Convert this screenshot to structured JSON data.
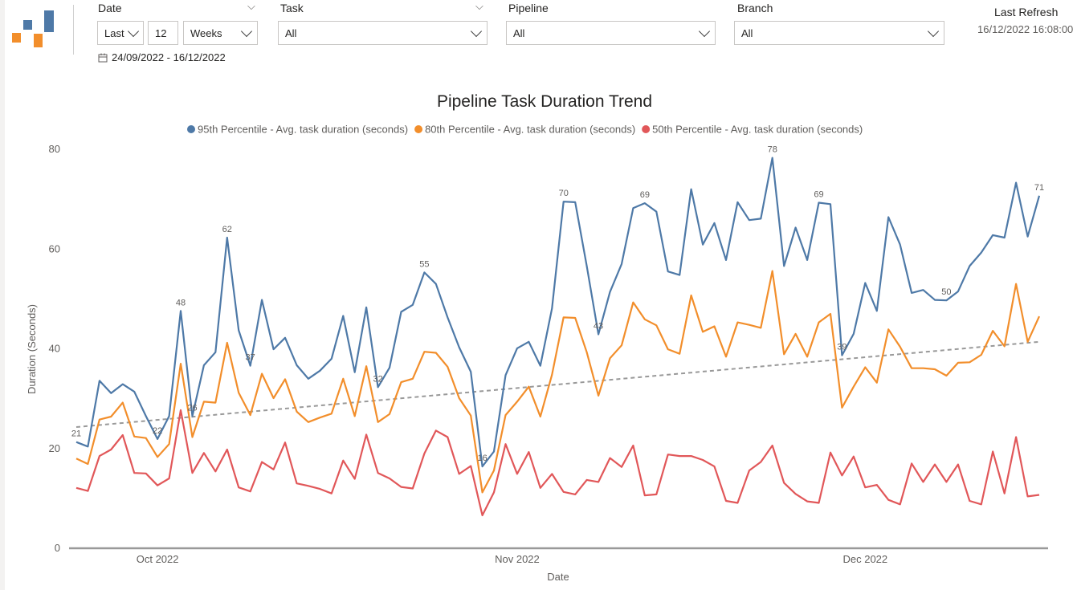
{
  "filters": {
    "date": {
      "title": "Date",
      "relative": "Last",
      "count": "12",
      "unit": "Weeks",
      "range": "24/09/2022 - 16/12/2022"
    },
    "task": {
      "title": "Task",
      "value": "All"
    },
    "pipeline": {
      "title": "Pipeline",
      "value": "All"
    },
    "branch": {
      "title": "Branch",
      "value": "All"
    }
  },
  "refresh": {
    "label": "Last Refresh",
    "value": "16/12/2022 16:08:00"
  },
  "chart_data": {
    "type": "line",
    "title": "Pipeline Task Duration Trend",
    "xlabel": "Date",
    "ylabel": "Duration (Seconds)",
    "ylim": [
      0,
      80
    ],
    "yticks": [
      0,
      20,
      40,
      60,
      80
    ],
    "xlim": [
      "2022-09-24",
      "2022-12-16"
    ],
    "xticks": [
      {
        "date": "2022-10-01",
        "label": "Oct 2022"
      },
      {
        "date": "2022-11-01",
        "label": "Nov 2022"
      },
      {
        "date": "2022-12-01",
        "label": "Dec 2022"
      }
    ],
    "legend_position": "top",
    "grid": false,
    "x": [
      "2022-09-24",
      "2022-09-25",
      "2022-09-26",
      "2022-09-27",
      "2022-09-28",
      "2022-09-29",
      "2022-09-30",
      "2022-10-01",
      "2022-10-02",
      "2022-10-03",
      "2022-10-04",
      "2022-10-05",
      "2022-10-06",
      "2022-10-07",
      "2022-10-08",
      "2022-10-09",
      "2022-10-10",
      "2022-10-11",
      "2022-10-12",
      "2022-10-13",
      "2022-10-14",
      "2022-10-15",
      "2022-10-16",
      "2022-10-17",
      "2022-10-18",
      "2022-10-19",
      "2022-10-20",
      "2022-10-21",
      "2022-10-22",
      "2022-10-23",
      "2022-10-24",
      "2022-10-25",
      "2022-10-26",
      "2022-10-27",
      "2022-10-28",
      "2022-10-29",
      "2022-10-30",
      "2022-10-31",
      "2022-11-01",
      "2022-11-02",
      "2022-11-03",
      "2022-11-04",
      "2022-11-05",
      "2022-11-06",
      "2022-11-07",
      "2022-11-08",
      "2022-11-09",
      "2022-11-10",
      "2022-11-11",
      "2022-11-12",
      "2022-11-13",
      "2022-11-14",
      "2022-11-15",
      "2022-11-16",
      "2022-11-17",
      "2022-11-18",
      "2022-11-19",
      "2022-11-20",
      "2022-11-21",
      "2022-11-22",
      "2022-11-23",
      "2022-11-24",
      "2022-11-25",
      "2022-11-26",
      "2022-11-27",
      "2022-11-28",
      "2022-11-29",
      "2022-11-30",
      "2022-12-01",
      "2022-12-02",
      "2022-12-03",
      "2022-12-04",
      "2022-12-05",
      "2022-12-06",
      "2022-12-07",
      "2022-12-08",
      "2022-12-09",
      "2022-12-10",
      "2022-12-11",
      "2022-12-12",
      "2022-12-13",
      "2022-12-14",
      "2022-12-15",
      "2022-12-16"
    ],
    "series": [
      {
        "name": "95th Percentile - Avg. task duration (seconds)",
        "color": "#4e79a7",
        "values": [
          21.3,
          20.4,
          33.6,
          31.1,
          32.9,
          31.4,
          26.5,
          21.9,
          26.5,
          47.6,
          26.5,
          36.7,
          39.3,
          62.3,
          43.7,
          36.6,
          49.8,
          39.9,
          42.2,
          36.7,
          34.0,
          35.6,
          38.0,
          46.6,
          35.3,
          48.3,
          32.3,
          36.2,
          47.4,
          48.8,
          55.3,
          53.0,
          46.3,
          40.3,
          35.4,
          16.4,
          19.4,
          34.7,
          40.1,
          41.4,
          36.6,
          48.1,
          69.5,
          69.4,
          56.6,
          42.9,
          51.4,
          57.0,
          68.2,
          69.2,
          67.5,
          55.5,
          54.8,
          72.0,
          60.9,
          65.2,
          57.8,
          69.4,
          65.8,
          66.1,
          78.3,
          56.6,
          64.3,
          57.8,
          69.3,
          69.0,
          38.7,
          43.0,
          53.2,
          47.6,
          66.4,
          60.9,
          51.2,
          51.8,
          49.8,
          49.7,
          51.5,
          56.6,
          59.3,
          62.8,
          62.3,
          73.3,
          62.5,
          70.7
        ]
      },
      {
        "name": "80th Percentile - Avg. task duration (seconds)",
        "color": "#f28e2b",
        "values": [
          18.0,
          16.9,
          25.8,
          26.4,
          29.2,
          22.4,
          22.1,
          18.3,
          20.9,
          37.0,
          22.3,
          29.4,
          29.2,
          41.2,
          31.2,
          26.7,
          35.0,
          30.1,
          33.9,
          27.4,
          25.3,
          26.2,
          27.0,
          34.0,
          26.5,
          36.5,
          25.3,
          26.9,
          33.3,
          34.0,
          39.4,
          39.2,
          36.4,
          30.1,
          26.6,
          11.2,
          15.6,
          26.7,
          29.4,
          32.4,
          26.4,
          34.8,
          46.3,
          46.2,
          39.3,
          30.6,
          38.1,
          40.7,
          49.3,
          45.9,
          44.7,
          39.9,
          39.0,
          50.7,
          43.4,
          44.5,
          38.4,
          45.3,
          44.8,
          44.2,
          55.6,
          38.9,
          43.0,
          38.4,
          45.3,
          47.0,
          28.2,
          32.4,
          36.3,
          33.2,
          43.9,
          40.4,
          36.1,
          36.1,
          35.9,
          34.6,
          37.2,
          37.3,
          38.8,
          43.6,
          40.5,
          53.0,
          41.4,
          46.5
        ]
      },
      {
        "name": "50th Percentile - Avg. task duration (seconds)",
        "color": "#e15759",
        "values": [
          12.1,
          11.5,
          18.5,
          19.8,
          22.7,
          15.1,
          15.0,
          12.6,
          14.0,
          27.7,
          15.1,
          19.1,
          15.4,
          19.8,
          12.2,
          11.4,
          17.3,
          15.8,
          21.2,
          13.0,
          12.5,
          11.9,
          11.0,
          17.6,
          13.9,
          22.8,
          15.1,
          14.0,
          12.3,
          12.0,
          19.0,
          23.6,
          22.3,
          14.9,
          16.5,
          6.6,
          11.2,
          20.9,
          14.9,
          19.3,
          12.1,
          14.9,
          11.3,
          10.8,
          13.7,
          13.3,
          18.1,
          16.3,
          20.6,
          10.6,
          10.8,
          18.8,
          18.5,
          18.5,
          17.7,
          16.4,
          9.5,
          9.1,
          15.6,
          17.3,
          20.6,
          13.1,
          10.9,
          9.4,
          9.1,
          19.2,
          14.6,
          18.4,
          12.2,
          12.7,
          9.7,
          8.8,
          17.0,
          13.3,
          16.8,
          13.3,
          16.8,
          9.5,
          8.8,
          19.4,
          11.0,
          22.3,
          10.4,
          10.7
        ]
      }
    ],
    "trendline": {
      "series": "95th Percentile - Avg. task duration (seconds)",
      "color": "#999999",
      "style": "dashed",
      "start": 24.3,
      "end": 41.4
    },
    "data_labels": [
      {
        "series": 0,
        "x": "2022-09-24",
        "text": "21"
      },
      {
        "series": 0,
        "x": "2022-10-01",
        "text": "22"
      },
      {
        "series": 0,
        "x": "2022-10-03",
        "text": "48"
      },
      {
        "series": 0,
        "x": "2022-10-04",
        "text": "26"
      },
      {
        "series": 0,
        "x": "2022-10-07",
        "text": "62"
      },
      {
        "series": 0,
        "x": "2022-10-09",
        "text": "37"
      },
      {
        "series": 0,
        "x": "2022-10-20",
        "text": "32"
      },
      {
        "series": 0,
        "x": "2022-10-24",
        "text": "55"
      },
      {
        "series": 0,
        "x": "2022-10-29",
        "text": "16"
      },
      {
        "series": 0,
        "x": "2022-11-05",
        "text": "70"
      },
      {
        "series": 0,
        "x": "2022-11-08",
        "text": "43"
      },
      {
        "series": 0,
        "x": "2022-11-12",
        "text": "69"
      },
      {
        "series": 0,
        "x": "2022-11-23",
        "text": "78"
      },
      {
        "series": 0,
        "x": "2022-11-27",
        "text": "69"
      },
      {
        "series": 0,
        "x": "2022-11-29",
        "text": "39"
      },
      {
        "series": 0,
        "x": "2022-12-08",
        "text": "50"
      },
      {
        "series": 0,
        "x": "2022-12-16",
        "text": "71"
      }
    ]
  }
}
